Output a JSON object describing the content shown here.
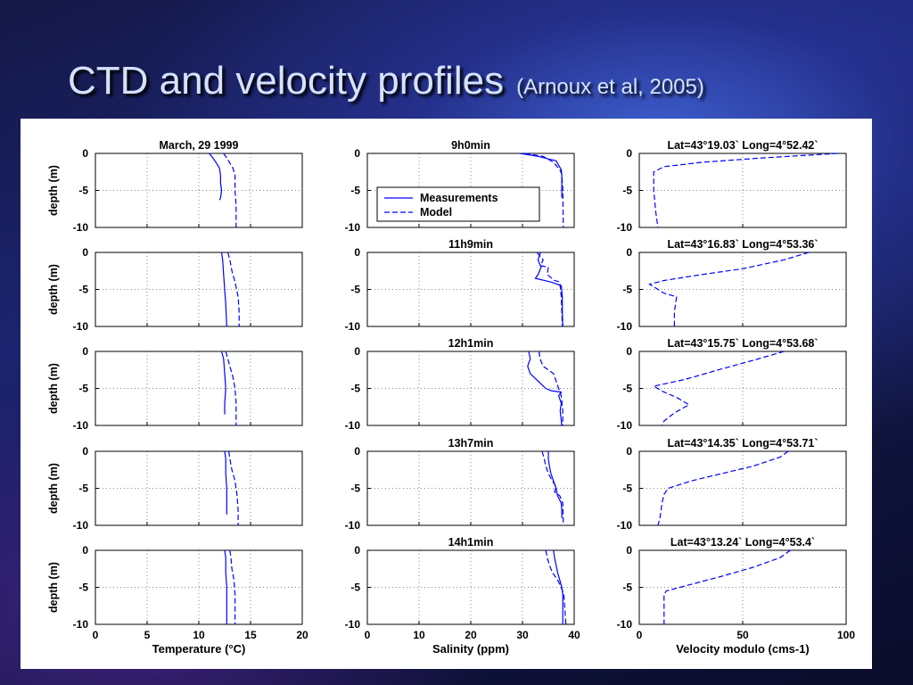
{
  "slide": {
    "title": "CTD and velocity profiles",
    "citation": "(Arnoux et al, 2005)"
  },
  "colors": {
    "line": "#0000ff",
    "axis": "#000000",
    "grid": "#888888",
    "background": "#ffffff"
  },
  "chart_data": {
    "type": "line",
    "layout": "5 rows x 3 columns of depth-profile panels",
    "columns": [
      {
        "id": "temperature",
        "xlabel": "Temperature (°C)",
        "xlim": [
          0,
          20
        ],
        "xticks": [
          "0",
          "5",
          "10",
          "15",
          "20"
        ]
      },
      {
        "id": "salinity",
        "xlabel": "Salinity (ppm)",
        "xlim": [
          0,
          40
        ],
        "xticks": [
          "0",
          "10",
          "20",
          "30",
          "40"
        ]
      },
      {
        "id": "velocity",
        "xlabel": "Velocity modulo (cms-1)",
        "xlim": [
          0,
          100
        ],
        "xticks": [
          "0",
          "50",
          "100"
        ]
      }
    ],
    "ylabel": "depth (m)",
    "ylim": [
      -10,
      0
    ],
    "yticks": [
      "0",
      "-5",
      "-10"
    ],
    "grid": true,
    "legend": {
      "position": "inside salinity panel of row 1",
      "entries": [
        {
          "label": "Measurements",
          "style": "solid"
        },
        {
          "label": "Model",
          "style": "dashed"
        }
      ]
    },
    "rows": [
      {
        "titles": [
          "March, 29 1999",
          "9h0min",
          "Lat=43°19.03` Long=4°52.42`"
        ],
        "temperature": {
          "measurements": [
            [
              11.0,
              0
            ],
            [
              11.3,
              -0.5
            ],
            [
              11.7,
              -1.3
            ],
            [
              12.0,
              -2
            ],
            [
              12.1,
              -3
            ],
            [
              12.1,
              -4
            ],
            [
              12.2,
              -5
            ],
            [
              12.1,
              -6
            ],
            [
              12.0,
              -6.3
            ]
          ],
          "model": [
            [
              12.4,
              0
            ],
            [
              12.7,
              -0.6
            ],
            [
              13.0,
              -1.3
            ],
            [
              13.3,
              -2
            ],
            [
              13.5,
              -3
            ],
            [
              13.5,
              -5
            ],
            [
              13.6,
              -7
            ],
            [
              13.6,
              -8
            ],
            [
              13.6,
              -10
            ]
          ]
        },
        "salinity": {
          "measurements": [
            [
              29.5,
              0
            ],
            [
              33,
              -0.4
            ],
            [
              36.5,
              -1.0
            ],
            [
              37.5,
              -2.2
            ],
            [
              37.6,
              -3
            ],
            [
              37.6,
              -6
            ]
          ],
          "model": [
            [
              30.5,
              0
            ],
            [
              34,
              -0.4
            ],
            [
              36,
              -1.2
            ],
            [
              37.2,
              -2.2
            ],
            [
              37.6,
              -2.8
            ],
            [
              37.8,
              -5
            ],
            [
              37.9,
              -10
            ]
          ]
        },
        "velocity": {
          "model": [
            [
              96,
              0
            ],
            [
              60,
              -0.6
            ],
            [
              30,
              -1.2
            ],
            [
              12,
              -1.8
            ],
            [
              7,
              -2.5
            ],
            [
              7,
              -5
            ],
            [
              8,
              -8
            ],
            [
              9,
              -10
            ]
          ]
        }
      },
      {
        "titles": [
          "",
          "11h9min",
          "Lat=43°16.83` Long=4°53.36`"
        ],
        "temperature": {
          "measurements": [
            [
              12.2,
              0
            ],
            [
              12.3,
              -1
            ],
            [
              12.4,
              -3
            ],
            [
              12.5,
              -5
            ],
            [
              12.6,
              -7
            ],
            [
              12.7,
              -10
            ]
          ],
          "model": [
            [
              12.8,
              0
            ],
            [
              13.0,
              -1
            ],
            [
              13.2,
              -2.5
            ],
            [
              13.5,
              -4
            ],
            [
              13.8,
              -6
            ],
            [
              13.9,
              -8
            ],
            [
              13.9,
              -10
            ]
          ]
        },
        "salinity": {
          "measurements": [
            [
              33.5,
              0
            ],
            [
              33.0,
              -1
            ],
            [
              33.6,
              -2
            ],
            [
              33.0,
              -3
            ],
            [
              32.5,
              -3.5
            ],
            [
              35.5,
              -4
            ],
            [
              37.5,
              -4.5
            ],
            [
              37.7,
              -6
            ],
            [
              37.7,
              -8
            ],
            [
              37.8,
              -10
            ]
          ],
          "model": [
            [
              32.8,
              0
            ],
            [
              34.0,
              -1
            ],
            [
              33.5,
              -1.8
            ],
            [
              35.0,
              -2
            ],
            [
              34.8,
              -3
            ],
            [
              36.2,
              -3.8
            ],
            [
              37.2,
              -4
            ],
            [
              37.5,
              -6
            ],
            [
              37.7,
              -10
            ]
          ]
        },
        "velocity": {
          "model": [
            [
              82,
              0
            ],
            [
              70,
              -1
            ],
            [
              50,
              -2.2
            ],
            [
              30,
              -3
            ],
            [
              12,
              -3.8
            ],
            [
              5,
              -4.3
            ],
            [
              12,
              -5.5
            ],
            [
              18,
              -6
            ],
            [
              17,
              -8
            ],
            [
              17,
              -10
            ]
          ]
        }
      },
      {
        "titles": [
          "",
          "12h1min",
          "Lat=43°15.75` Long=4°53.68`"
        ],
        "temperature": {
          "measurements": [
            [
              12.2,
              0
            ],
            [
              12.4,
              -1
            ],
            [
              12.5,
              -3
            ],
            [
              12.6,
              -5
            ],
            [
              12.5,
              -7
            ],
            [
              12.5,
              -8.5
            ]
          ],
          "model": [
            [
              12.6,
              0
            ],
            [
              12.8,
              -1
            ],
            [
              13.0,
              -2
            ],
            [
              13.3,
              -3.5
            ],
            [
              13.5,
              -5
            ],
            [
              13.6,
              -7
            ],
            [
              13.6,
              -10
            ]
          ]
        },
        "salinity": {
          "measurements": [
            [
              31.2,
              0
            ],
            [
              31.5,
              -1
            ],
            [
              31.0,
              -2
            ],
            [
              31.5,
              -3
            ],
            [
              33.0,
              -4
            ],
            [
              34.5,
              -5
            ],
            [
              35.5,
              -5.3
            ],
            [
              37.5,
              -5.5
            ],
            [
              37.0,
              -6
            ],
            [
              37.5,
              -7
            ],
            [
              37.3,
              -8
            ],
            [
              37.6,
              -10
            ]
          ],
          "model": [
            [
              33.2,
              0
            ],
            [
              33.4,
              -1
            ],
            [
              34.0,
              -2
            ],
            [
              36.0,
              -3
            ],
            [
              36.5,
              -4
            ],
            [
              37.0,
              -5
            ],
            [
              37.5,
              -6
            ],
            [
              37.8,
              -8
            ],
            [
              37.8,
              -10
            ]
          ]
        },
        "velocity": {
          "model": [
            [
              70,
              0
            ],
            [
              55,
              -1.2
            ],
            [
              38,
              -2.5
            ],
            [
              22,
              -3.8
            ],
            [
              7,
              -4.7
            ],
            [
              12,
              -5.5
            ],
            [
              18,
              -6.2
            ],
            [
              24,
              -7.2
            ],
            [
              17,
              -8.3
            ],
            [
              12,
              -9.4
            ],
            [
              11,
              -10
            ]
          ]
        }
      },
      {
        "titles": [
          "",
          "13h7min",
          "Lat=43°14.35` Long=4°53.71`"
        ],
        "temperature": {
          "measurements": [
            [
              12.5,
              0
            ],
            [
              12.6,
              -1
            ],
            [
              12.6,
              -3
            ],
            [
              12.7,
              -5
            ],
            [
              12.7,
              -7
            ],
            [
              12.7,
              -8.5
            ]
          ],
          "model": [
            [
              12.9,
              0
            ],
            [
              13.0,
              -1
            ],
            [
              13.2,
              -2.5
            ],
            [
              13.5,
              -4
            ],
            [
              13.7,
              -6
            ],
            [
              13.8,
              -8
            ],
            [
              13.8,
              -10
            ]
          ]
        },
        "salinity": {
          "measurements": [
            [
              35.0,
              0
            ],
            [
              35.0,
              -1
            ],
            [
              35.2,
              -2
            ],
            [
              35.5,
              -3
            ],
            [
              36.0,
              -4
            ],
            [
              36.5,
              -5
            ],
            [
              36.8,
              -6
            ],
            [
              37.5,
              -7
            ],
            [
              37.6,
              -8
            ],
            [
              37.6,
              -9
            ]
          ],
          "model": [
            [
              33.8,
              0
            ],
            [
              34.2,
              -1
            ],
            [
              34.5,
              -2
            ],
            [
              35.0,
              -3
            ],
            [
              35.8,
              -4
            ],
            [
              36.5,
              -4.8
            ],
            [
              36.2,
              -5.5
            ],
            [
              37.2,
              -6
            ],
            [
              37.8,
              -7
            ],
            [
              37.9,
              -10
            ]
          ]
        },
        "velocity": {
          "model": [
            [
              72,
              0
            ],
            [
              68,
              -0.8
            ],
            [
              55,
              -2
            ],
            [
              40,
              -3
            ],
            [
              25,
              -4
            ],
            [
              14,
              -5
            ],
            [
              12,
              -5.8
            ],
            [
              11,
              -7
            ],
            [
              10,
              -9
            ],
            [
              9,
              -10
            ]
          ]
        }
      },
      {
        "titles": [
          "",
          "14h1min",
          "Lat=43°13.24` Long=4°53.4`"
        ],
        "temperature": {
          "measurements": [
            [
              12.5,
              0
            ],
            [
              12.6,
              -1
            ],
            [
              12.6,
              -3
            ],
            [
              12.7,
              -5
            ],
            [
              12.7,
              -7
            ],
            [
              12.7,
              -10
            ]
          ],
          "model": [
            [
              13.0,
              0
            ],
            [
              13.1,
              -1
            ],
            [
              13.2,
              -2.5
            ],
            [
              13.4,
              -4
            ],
            [
              13.5,
              -6
            ],
            [
              13.5,
              -8
            ],
            [
              13.5,
              -10
            ]
          ]
        },
        "salinity": {
          "measurements": [
            [
              36.0,
              0
            ],
            [
              36.2,
              -1
            ],
            [
              36.5,
              -2
            ],
            [
              36.8,
              -3
            ],
            [
              37.2,
              -4
            ],
            [
              37.6,
              -5
            ],
            [
              37.8,
              -6
            ],
            [
              37.8,
              -8
            ],
            [
              37.8,
              -10
            ]
          ],
          "model": [
            [
              34.5,
              0
            ],
            [
              34.8,
              -1
            ],
            [
              35.2,
              -2
            ],
            [
              35.8,
              -3
            ],
            [
              36.8,
              -4
            ],
            [
              37.5,
              -5
            ],
            [
              38.0,
              -6
            ],
            [
              38.2,
              -8
            ],
            [
              38.4,
              -10
            ]
          ]
        },
        "velocity": {
          "model": [
            [
              73,
              0
            ],
            [
              68,
              -1
            ],
            [
              55,
              -2.3
            ],
            [
              40,
              -3.5
            ],
            [
              25,
              -4.6
            ],
            [
              13,
              -5.5
            ],
            [
              12,
              -6
            ],
            [
              12,
              -8
            ],
            [
              12,
              -10
            ]
          ]
        }
      }
    ]
  }
}
